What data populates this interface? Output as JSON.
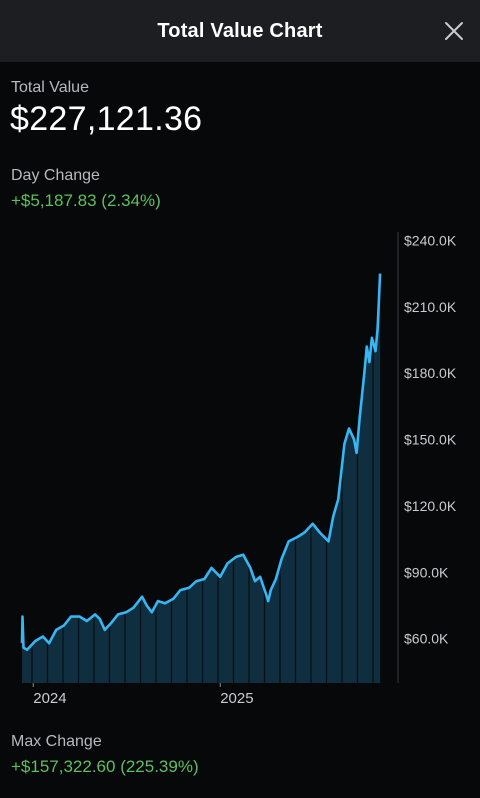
{
  "header": {
    "title": "Total Value Chart",
    "close_icon": "close-icon"
  },
  "total_value": {
    "label": "Total Value",
    "value": "$227,121.36"
  },
  "day_change": {
    "label": "Day Change",
    "value": "+$5,187.83 (2.34%)"
  },
  "max_change": {
    "label": "Max Change",
    "value": "+$157,322.60 (225.39%)"
  },
  "colors": {
    "accent": "#38b6f4",
    "positive": "#5fbf5f",
    "fill": "#0f2e3f",
    "header_bg": "#1c1e21"
  },
  "chart_data": {
    "type": "area",
    "x_unit": "date",
    "ylim": [
      40000,
      242000
    ],
    "y_ticks": [
      60000,
      90000,
      120000,
      150000,
      180000,
      210000,
      240000
    ],
    "y_tick_labels": [
      "$60.0K",
      "$90.0K",
      "$120.0K",
      "$150.0K",
      "$180.0K",
      "$210.0K",
      "$240.0K"
    ],
    "x_ticks": [
      {
        "date": "2024-01-01",
        "label": "2024"
      },
      {
        "date": "2025-01-01",
        "label": "2025"
      }
    ],
    "xlim": [
      "2023-12-10",
      "2025-12-15"
    ],
    "grid": false,
    "series": [
      {
        "points": [
          [
            "2023-12-10",
            58000
          ],
          [
            "2023-12-11",
            70000
          ],
          [
            "2023-12-13",
            56000
          ],
          [
            "2023-12-20",
            55000
          ],
          [
            "2024-01-05",
            59000
          ],
          [
            "2024-01-20",
            61000
          ],
          [
            "2024-02-01",
            58000
          ],
          [
            "2024-02-15",
            64000
          ],
          [
            "2024-03-01",
            66000
          ],
          [
            "2024-03-15",
            70000
          ],
          [
            "2024-04-01",
            70000
          ],
          [
            "2024-04-15",
            68000
          ],
          [
            "2024-05-01",
            71000
          ],
          [
            "2024-05-10",
            69000
          ],
          [
            "2024-05-20",
            64000
          ],
          [
            "2024-06-01",
            67000
          ],
          [
            "2024-06-15",
            71000
          ],
          [
            "2024-07-01",
            72000
          ],
          [
            "2024-07-15",
            74000
          ],
          [
            "2024-08-01",
            79000
          ],
          [
            "2024-08-10",
            75000
          ],
          [
            "2024-08-20",
            72000
          ],
          [
            "2024-09-01",
            77000
          ],
          [
            "2024-09-15",
            76000
          ],
          [
            "2024-10-01",
            78000
          ],
          [
            "2024-10-15",
            82000
          ],
          [
            "2024-11-01",
            83000
          ],
          [
            "2024-11-15",
            86000
          ],
          [
            "2024-12-01",
            87000
          ],
          [
            "2024-12-15",
            92000
          ],
          [
            "2025-01-01",
            88000
          ],
          [
            "2025-01-15",
            94000
          ],
          [
            "2025-02-01",
            97000
          ],
          [
            "2025-02-15",
            98000
          ],
          [
            "2025-03-01",
            92000
          ],
          [
            "2025-03-10",
            86000
          ],
          [
            "2025-03-20",
            88000
          ],
          [
            "2025-04-01",
            80000
          ],
          [
            "2025-04-05",
            77000
          ],
          [
            "2025-04-10",
            82000
          ],
          [
            "2025-04-20",
            87000
          ],
          [
            "2025-05-01",
            96000
          ],
          [
            "2025-05-15",
            104000
          ],
          [
            "2025-06-01",
            106000
          ],
          [
            "2025-06-15",
            108000
          ],
          [
            "2025-07-01",
            112000
          ],
          [
            "2025-07-15",
            108000
          ],
          [
            "2025-08-01",
            104000
          ],
          [
            "2025-08-10",
            115000
          ],
          [
            "2025-08-20",
            123000
          ],
          [
            "2025-09-01",
            148000
          ],
          [
            "2025-09-10",
            155000
          ],
          [
            "2025-09-20",
            150000
          ],
          [
            "2025-09-25",
            144000
          ],
          [
            "2025-10-01",
            160000
          ],
          [
            "2025-10-10",
            180000
          ],
          [
            "2025-10-15",
            192000
          ],
          [
            "2025-10-20",
            185000
          ],
          [
            "2025-10-25",
            196000
          ],
          [
            "2025-11-01",
            190000
          ],
          [
            "2025-11-05",
            200000
          ],
          [
            "2025-11-10",
            225000
          ]
        ]
      }
    ]
  }
}
